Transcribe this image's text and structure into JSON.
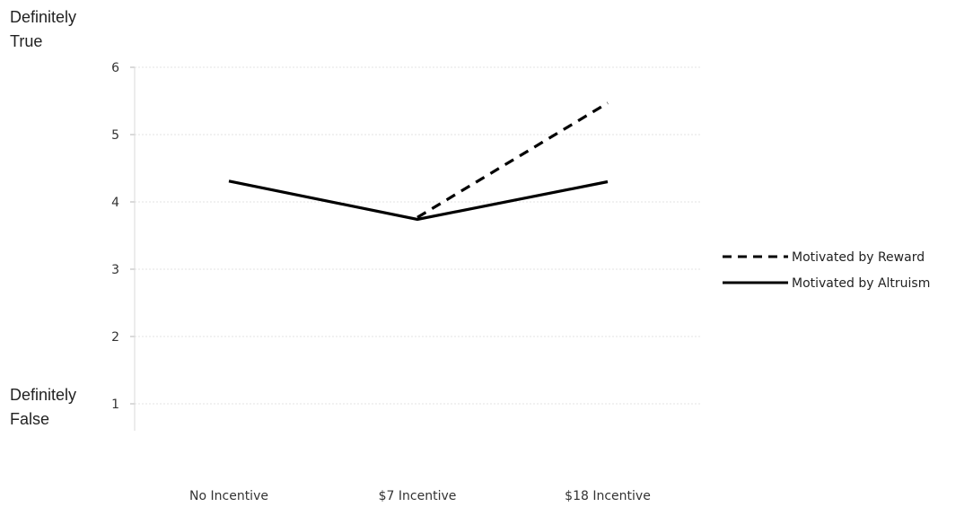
{
  "chart_data": {
    "type": "line",
    "categories": [
      "No Incentive",
      "$7 Incentive",
      "$18 Incentive"
    ],
    "yticks": [
      1,
      2,
      3,
      4,
      5,
      6
    ],
    "ylim": [
      0.6,
      6
    ],
    "grid": true,
    "legend_position": "right",
    "y_anchor_labels": {
      "top": [
        "Definitely",
        "True"
      ],
      "bottom": [
        "Definitely",
        "False"
      ]
    },
    "series": [
      {
        "name": "Motivated by Reward",
        "values": [
          null,
          3.77,
          5.47
        ],
        "style": "dashed",
        "color": "#000000"
      },
      {
        "name": "Motivated by Altruism",
        "values": [
          4.31,
          3.74,
          4.3
        ],
        "style": "solid",
        "color": "#000000"
      }
    ]
  }
}
